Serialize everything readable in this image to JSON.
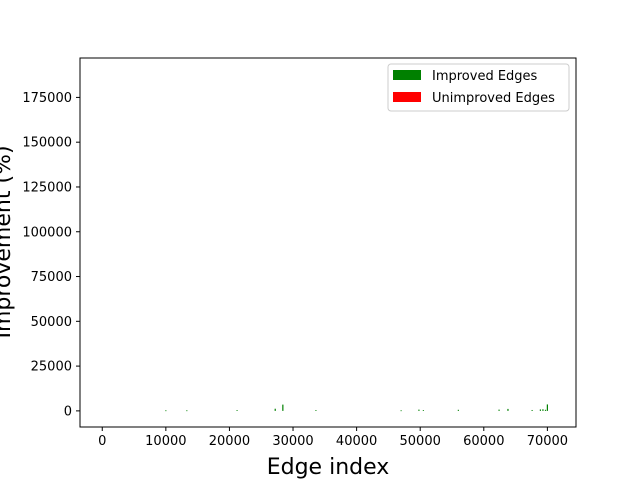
{
  "chart_data": {
    "type": "bar",
    "title": "",
    "xlabel": "Edge index",
    "ylabel": "Improvement (%)",
    "xlim": [
      -3500,
      74500
    ],
    "ylim": [
      -9000,
      197000
    ],
    "xticks": [
      0,
      10000,
      20000,
      30000,
      40000,
      50000,
      60000,
      70000
    ],
    "xtick_labels": [
      "0",
      "10000",
      "20000",
      "30000",
      "40000",
      "50000",
      "60000",
      "70000"
    ],
    "yticks": [
      0,
      25000,
      50000,
      75000,
      100000,
      125000,
      150000,
      175000
    ],
    "ytick_labels": [
      "0",
      "25000",
      "50000",
      "75000",
      "100000",
      "125000",
      "150000",
      "175000"
    ],
    "grid": false,
    "legend_position": "upper right",
    "series": [
      {
        "name": "Improved Edges",
        "color": "#008000",
        "x": [
          10000,
          13300,
          21200,
          27200,
          28400,
          33600,
          47000,
          49800,
          50500,
          56000,
          62400,
          63800,
          67600,
          68900,
          69300,
          69700,
          70000
        ],
        "values": [
          300,
          300,
          400,
          1200,
          3500,
          400,
          300,
          700,
          400,
          600,
          700,
          1100,
          500,
          800,
          900,
          600,
          3600
        ]
      },
      {
        "name": "Unimproved Edges",
        "color": "#ff0000",
        "x": [],
        "values": []
      }
    ]
  }
}
